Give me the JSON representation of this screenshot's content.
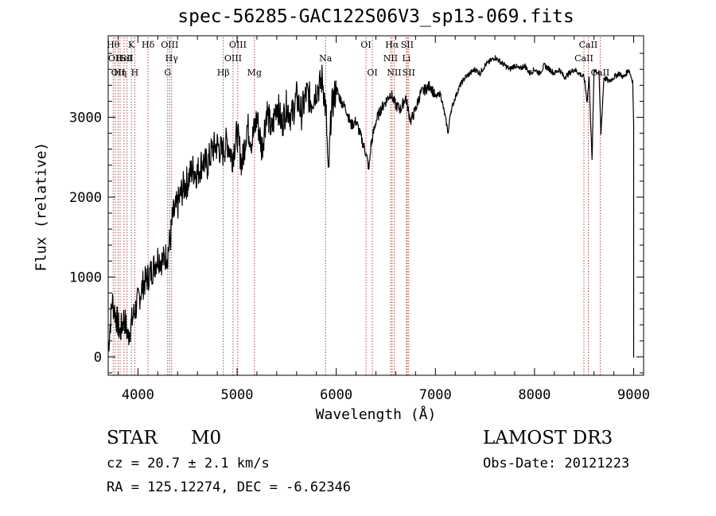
{
  "chart_data": {
    "type": "line",
    "title": "spec-56285-GAC122S06V3_sp13-069.fits",
    "xlabel": "Wavelength (Å)",
    "ylabel": "Flux (relative)",
    "xlim": [
      3700,
      9100
    ],
    "ylim": [
      -230,
      4020
    ],
    "xticks": [
      4000,
      5000,
      6000,
      7000,
      8000,
      9000
    ],
    "yticks": [
      0,
      1000,
      2000,
      3000
    ],
    "grid": false,
    "series": [
      {
        "name": "flux",
        "x": [
          3700,
          3740,
          3780,
          3820,
          3860,
          3900,
          3950,
          4000,
          4050,
          4100,
          4150,
          4200,
          4250,
          4300,
          4330,
          4350,
          4400,
          4450,
          4500,
          4550,
          4600,
          4650,
          4700,
          4750,
          4800,
          4850,
          4900,
          4950,
          5000,
          5050,
          5100,
          5150,
          5200,
          5250,
          5300,
          5350,
          5400,
          5450,
          5500,
          5550,
          5600,
          5650,
          5700,
          5750,
          5800,
          5840,
          5860,
          5900,
          5920,
          5950,
          6000,
          6050,
          6100,
          6150,
          6200,
          6250,
          6300,
          6330,
          6350,
          6400,
          6450,
          6500,
          6550,
          6600,
          6650,
          6700,
          6750,
          6800,
          6850,
          6900,
          6950,
          7000,
          7050,
          7100,
          7130,
          7150,
          7200,
          7250,
          7300,
          7350,
          7400,
          7450,
          7500,
          7550,
          7600,
          7650,
          7700,
          7750,
          7800,
          7850,
          7900,
          7950,
          8000,
          8050,
          8100,
          8150,
          8200,
          8250,
          8300,
          8350,
          8400,
          8450,
          8500,
          8530,
          8550,
          8580,
          8600,
          8650,
          8670,
          8700,
          8750,
          8800,
          8850,
          8900,
          8950,
          8990,
          9000
        ],
        "y": [
          100,
          700,
          500,
          300,
          500,
          250,
          500,
          700,
          900,
          1000,
          1100,
          1250,
          1200,
          1300,
          1500,
          1750,
          1900,
          2100,
          2200,
          2350,
          2300,
          2450,
          2400,
          2600,
          2650,
          2550,
          2700,
          2500,
          2800,
          2400,
          2900,
          2700,
          3000,
          2600,
          3100,
          2800,
          3200,
          2900,
          3150,
          3000,
          3250,
          3050,
          3300,
          3200,
          3350,
          3400,
          3500,
          3000,
          2200,
          3100,
          3350,
          3200,
          3100,
          2900,
          2950,
          2750,
          2550,
          2350,
          2650,
          2950,
          3100,
          3200,
          3300,
          3150,
          3100,
          3250,
          2950,
          3100,
          3300,
          3350,
          3400,
          3250,
          3300,
          3000,
          2800,
          3050,
          3250,
          3400,
          3500,
          3550,
          3600,
          3550,
          3650,
          3700,
          3750,
          3700,
          3650,
          3600,
          3650,
          3600,
          3650,
          3550,
          3600,
          3550,
          3650,
          3600,
          3550,
          3600,
          3500,
          3550,
          3600,
          3550,
          3500,
          3200,
          3500,
          2450,
          3600,
          3550,
          2800,
          3500,
          3450,
          3500,
          3550,
          3500,
          3600,
          3450,
          2900
        ]
      }
    ],
    "lines": [
      {
        "x": 3750,
        "label": "Hθ",
        "row": 0
      },
      {
        "x": 3770,
        "label": "OII",
        "row": 1
      },
      {
        "x": 3800,
        "label": "OII",
        "row": 2
      },
      {
        "x": 3820,
        "label": "Hη",
        "row": 2
      },
      {
        "x": 3860,
        "label": "HeI",
        "row": 1
      },
      {
        "x": 3890,
        "label": "SII",
        "row": 1
      },
      {
        "x": 3934,
        "label": "K",
        "row": 0
      },
      {
        "x": 3968,
        "label": "H",
        "row": 2
      },
      {
        "x": 4102,
        "label": "Hδ",
        "row": 0
      },
      {
        "x": 4320,
        "label": "OIII",
        "row": 0
      },
      {
        "x": 4340,
        "label": "Hγ",
        "row": 1
      },
      {
        "x": 4300,
        "label": "G",
        "row": 2
      },
      {
        "x": 4861,
        "label": "Hβ",
        "row": 2
      },
      {
        "x": 4959,
        "label": "OIII",
        "row": 1
      },
      {
        "x": 5007,
        "label": "OIII",
        "row": 0
      },
      {
        "x": 5175,
        "label": "Mg",
        "row": 2
      },
      {
        "x": 5892,
        "label": "Na",
        "row": 1
      },
      {
        "x": 6300,
        "label": "OI",
        "row": 0
      },
      {
        "x": 6364,
        "label": "OI",
        "row": 2
      },
      {
        "x": 6548,
        "label": "NII",
        "row": 1
      },
      {
        "x": 6563,
        "label": "Hα",
        "row": 0
      },
      {
        "x": 6584,
        "label": "NII",
        "row": 2
      },
      {
        "x": 6708,
        "label": "Li",
        "row": 1
      },
      {
        "x": 6716,
        "label": "SII",
        "row": 0
      },
      {
        "x": 6731,
        "label": "SII",
        "row": 2
      },
      {
        "x": 8498,
        "label": "CaII",
        "row": 1
      },
      {
        "x": 8542,
        "label": "CaII",
        "row": 0
      },
      {
        "x": 8662,
        "label": "CaII",
        "row": 2
      }
    ]
  },
  "info": {
    "class": "STAR",
    "subclass": "M0",
    "survey": "LAMOST DR3",
    "cz": "cz = 20.7 ± 2.1 km/s",
    "obs_date": "Obs-Date: 20121223",
    "radec": "RA = 125.12274, DEC =  -6.62346"
  }
}
